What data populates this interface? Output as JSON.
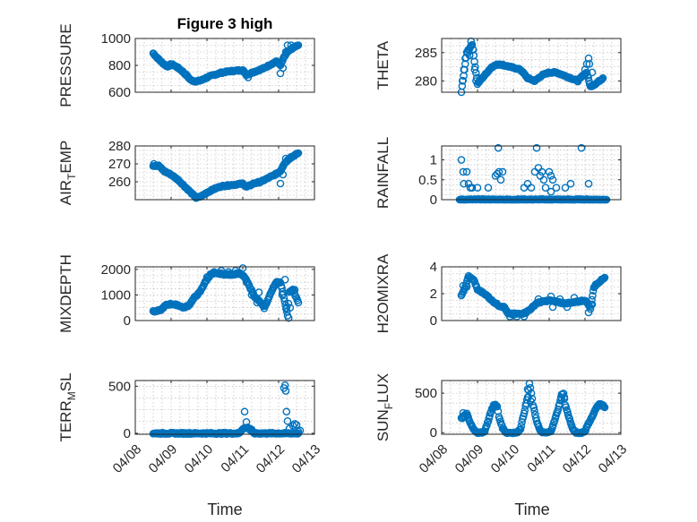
{
  "title": "Figure 3 high",
  "xlabel": "Time",
  "marker_color": "#0072bd",
  "chart_data": [
    {
      "type": "scatter",
      "title": "Figure 3 high",
      "ylabel": "PRESSURE",
      "ylabel_sub": "",
      "ylim": [
        600,
        1000
      ],
      "yticks": [
        600,
        800,
        1000
      ],
      "xlim": [
        0,
        5
      ],
      "grid": true,
      "xtick_labels": [
        "04/08",
        "04/09",
        "04/10",
        "04/11",
        "04/12",
        "04/13"
      ],
      "show_xticklabels": false,
      "anchors": [
        [
          0.5,
          890
        ],
        [
          0.6,
          860
        ],
        [
          0.75,
          820
        ],
        [
          0.9,
          790
        ],
        [
          1.0,
          810
        ],
        [
          1.15,
          790
        ],
        [
          1.3,
          760
        ],
        [
          1.45,
          720
        ],
        [
          1.55,
          690
        ],
        [
          1.7,
          680
        ],
        [
          1.85,
          690
        ],
        [
          2.0,
          710
        ],
        [
          2.2,
          730
        ],
        [
          2.4,
          745
        ],
        [
          2.6,
          755
        ],
        [
          2.8,
          760
        ],
        [
          3.0,
          765
        ],
        [
          3.1,
          730
        ],
        [
          3.25,
          745
        ],
        [
          3.4,
          760
        ],
        [
          3.6,
          780
        ],
        [
          3.8,
          810
        ],
        [
          3.95,
          830
        ],
        [
          4.05,
          800
        ],
        [
          4.15,
          860
        ],
        [
          4.25,
          900
        ],
        [
          4.4,
          930
        ],
        [
          4.55,
          950
        ]
      ],
      "extra": [
        [
          4.05,
          740
        ],
        [
          4.12,
          780
        ],
        [
          4.2,
          900
        ],
        [
          4.25,
          950
        ],
        [
          4.3,
          910
        ],
        [
          4.35,
          950
        ],
        [
          3.15,
          710
        ]
      ]
    },
    {
      "type": "scatter",
      "title": "",
      "ylabel": "THETA",
      "ylabel_sub": "",
      "ylim": [
        278,
        287.5
      ],
      "yticks": [
        280,
        285
      ],
      "xlim": [
        0,
        5
      ],
      "grid": true,
      "xtick_labels": [
        "04/08",
        "04/09",
        "04/10",
        "04/11",
        "04/12",
        "04/13"
      ],
      "show_xticklabels": false,
      "anchors": [
        [
          0.55,
          278
        ],
        [
          0.7,
          285
        ],
        [
          0.85,
          286.5
        ],
        [
          1.0,
          279.5
        ],
        [
          1.2,
          281
        ],
        [
          1.4,
          282.5
        ],
        [
          1.6,
          283
        ],
        [
          1.9,
          282.5
        ],
        [
          2.2,
          282
        ],
        [
          2.4,
          280.5
        ],
        [
          2.6,
          280
        ],
        [
          2.8,
          281
        ],
        [
          3.0,
          281.5
        ],
        [
          3.2,
          281.5
        ],
        [
          3.4,
          281
        ],
        [
          3.6,
          280.5
        ],
        [
          3.8,
          280
        ],
        [
          3.95,
          281
        ],
        [
          4.05,
          281.5
        ],
        [
          4.15,
          279
        ],
        [
          4.3,
          279.5
        ],
        [
          4.5,
          280.5
        ]
      ],
      "extra": [
        [
          0.58,
          280
        ],
        [
          0.62,
          282
        ],
        [
          0.66,
          284
        ],
        [
          0.74,
          285.5
        ],
        [
          0.78,
          284.5
        ],
        [
          0.82,
          287
        ],
        [
          0.88,
          285.5
        ],
        [
          0.92,
          282
        ],
        [
          0.96,
          280
        ],
        [
          1.05,
          280
        ],
        [
          1.1,
          280.5
        ],
        [
          4.0,
          282
        ],
        [
          4.05,
          283
        ],
        [
          4.1,
          284
        ],
        [
          4.12,
          283
        ],
        [
          4.2,
          281.5
        ]
      ]
    },
    {
      "type": "scatter",
      "title": "",
      "ylabel": "AIR",
      "ylabel_sub": "T",
      "ylabel_suffix": "EMP",
      "ylim": [
        250,
        280
      ],
      "yticks": [
        260,
        270,
        280
      ],
      "xlim": [
        0,
        5
      ],
      "grid": true,
      "xtick_labels": [
        "04/08",
        "04/09",
        "04/10",
        "04/11",
        "04/12",
        "04/13"
      ],
      "show_xticklabels": false,
      "anchors": [
        [
          0.5,
          269
        ],
        [
          0.65,
          269
        ],
        [
          0.8,
          266
        ],
        [
          1.0,
          264
        ],
        [
          1.2,
          261
        ],
        [
          1.4,
          257
        ],
        [
          1.55,
          254
        ],
        [
          1.7,
          251
        ],
        [
          1.85,
          252
        ],
        [
          2.0,
          254
        ],
        [
          2.2,
          256
        ],
        [
          2.4,
          257.5
        ],
        [
          2.6,
          258
        ],
        [
          2.8,
          258.5
        ],
        [
          3.0,
          259
        ],
        [
          3.1,
          257
        ],
        [
          3.3,
          259
        ],
        [
          3.5,
          260
        ],
        [
          3.7,
          262
        ],
        [
          3.9,
          264
        ],
        [
          4.05,
          266
        ],
        [
          4.15,
          270
        ],
        [
          4.3,
          273
        ],
        [
          4.55,
          276
        ]
      ],
      "extra": [
        [
          0.52,
          270
        ],
        [
          0.56,
          269
        ],
        [
          4.05,
          259
        ],
        [
          4.12,
          264
        ],
        [
          4.2,
          273
        ],
        [
          4.35,
          274
        ],
        [
          4.45,
          275
        ]
      ]
    },
    {
      "type": "scatter",
      "title": "",
      "ylabel": "RAINFALL",
      "ylabel_sub": "",
      "ylim": [
        0,
        1.35
      ],
      "yticks": [
        0,
        0.5,
        1
      ],
      "xlim": [
        0,
        5
      ],
      "grid": true,
      "xtick_labels": [
        "04/08",
        "04/09",
        "04/10",
        "04/11",
        "04/12",
        "04/13"
      ],
      "show_xticklabels": false,
      "anchors": [
        [
          0.5,
          0
        ],
        [
          4.6,
          0
        ]
      ],
      "extra": [
        [
          0.55,
          1.0
        ],
        [
          0.6,
          0.7
        ],
        [
          0.62,
          0.4
        ],
        [
          0.7,
          0.7
        ],
        [
          0.75,
          0.4
        ],
        [
          0.8,
          0.3
        ],
        [
          0.85,
          0.3
        ],
        [
          1.0,
          0.3
        ],
        [
          1.3,
          0.3
        ],
        [
          1.5,
          0.6
        ],
        [
          1.55,
          0.65
        ],
        [
          1.58,
          1.3
        ],
        [
          1.6,
          0.7
        ],
        [
          1.65,
          0.5
        ],
        [
          1.7,
          0.7
        ],
        [
          2.3,
          0.3
        ],
        [
          2.4,
          0.4
        ],
        [
          2.5,
          0.3
        ],
        [
          2.6,
          0.7
        ],
        [
          2.65,
          1.3
        ],
        [
          2.7,
          0.8
        ],
        [
          2.75,
          0.6
        ],
        [
          2.8,
          0.7
        ],
        [
          2.85,
          0.5
        ],
        [
          2.9,
          0.3
        ],
        [
          3.0,
          0.7
        ],
        [
          3.05,
          0.6
        ],
        [
          3.1,
          0.5
        ],
        [
          3.2,
          0.3
        ],
        [
          3.45,
          0.3
        ],
        [
          3.6,
          0.4
        ],
        [
          3.9,
          1.3
        ],
        [
          4.1,
          0.4
        ],
        [
          3.05,
          0.2
        ]
      ]
    },
    {
      "type": "scatter",
      "title": "",
      "ylabel": "MIXDEPTH",
      "ylabel_sub": "",
      "ylim": [
        0,
        2100
      ],
      "yticks": [
        0,
        1000,
        2000
      ],
      "xlim": [
        0,
        5
      ],
      "grid": true,
      "xtick_labels": [
        "04/08",
        "04/09",
        "04/10",
        "04/11",
        "04/12",
        "04/13"
      ],
      "show_xticklabels": false,
      "anchors": [
        [
          0.5,
          350
        ],
        [
          0.7,
          400
        ],
        [
          0.85,
          600
        ],
        [
          1.0,
          650
        ],
        [
          1.2,
          600
        ],
        [
          1.35,
          500
        ],
        [
          1.5,
          600
        ],
        [
          1.65,
          900
        ],
        [
          1.8,
          1100
        ],
        [
          1.95,
          1500
        ],
        [
          2.1,
          1800
        ],
        [
          2.3,
          1850
        ],
        [
          2.5,
          1800
        ],
        [
          2.7,
          1800
        ],
        [
          2.9,
          1850
        ],
        [
          3.05,
          1700
        ],
        [
          3.2,
          1300
        ],
        [
          3.35,
          900
        ],
        [
          3.5,
          700
        ],
        [
          3.6,
          500
        ],
        [
          3.7,
          800
        ],
        [
          3.85,
          1300
        ],
        [
          3.95,
          1500
        ],
        [
          4.05,
          1500
        ],
        [
          4.15,
          900
        ],
        [
          4.25,
          200
        ],
        [
          4.3,
          1100
        ],
        [
          4.4,
          1200
        ],
        [
          4.55,
          700
        ]
      ],
      "extra": [
        [
          2.0,
          1700
        ],
        [
          2.2,
          1900
        ],
        [
          2.4,
          1950
        ],
        [
          2.6,
          1900
        ],
        [
          2.8,
          1950
        ],
        [
          3.0,
          2050
        ],
        [
          3.1,
          1500
        ],
        [
          3.25,
          1000
        ],
        [
          3.4,
          700
        ],
        [
          3.45,
          1100
        ],
        [
          3.55,
          600
        ],
        [
          4.1,
          1000
        ],
        [
          4.18,
          1600
        ],
        [
          4.22,
          500
        ],
        [
          4.28,
          100
        ],
        [
          4.32,
          500
        ],
        [
          4.45,
          1200
        ]
      ]
    },
    {
      "type": "scatter",
      "title": "",
      "ylabel": "H2OMIXRA",
      "ylabel_sub": "",
      "ylim": [
        0,
        4
      ],
      "yticks": [
        0,
        2,
        4
      ],
      "xlim": [
        0,
        5
      ],
      "grid": true,
      "xtick_labels": [
        "04/08",
        "04/09",
        "04/10",
        "04/11",
        "04/12",
        "04/13"
      ],
      "show_xticklabels": false,
      "anchors": [
        [
          0.55,
          1.9
        ],
        [
          0.65,
          2.4
        ],
        [
          0.75,
          3.3
        ],
        [
          0.9,
          3.0
        ],
        [
          1.0,
          2.3
        ],
        [
          1.2,
          2.0
        ],
        [
          1.4,
          1.5
        ],
        [
          1.6,
          1.1
        ],
        [
          1.75,
          1.0
        ],
        [
          1.85,
          0.5
        ],
        [
          2.0,
          0.5
        ],
        [
          2.2,
          0.5
        ],
        [
          2.35,
          0.6
        ],
        [
          2.5,
          0.9
        ],
        [
          2.65,
          1.3
        ],
        [
          2.8,
          1.4
        ],
        [
          3.0,
          1.5
        ],
        [
          3.2,
          1.4
        ],
        [
          3.4,
          1.3
        ],
        [
          3.6,
          1.3
        ],
        [
          3.8,
          1.4
        ],
        [
          3.95,
          1.5
        ],
        [
          4.05,
          1.4
        ],
        [
          4.15,
          0.9
        ],
        [
          4.25,
          2.5
        ],
        [
          4.4,
          2.9
        ],
        [
          4.55,
          3.2
        ]
      ],
      "extra": [
        [
          0.6,
          2.6
        ],
        [
          0.7,
          2.5
        ],
        [
          0.8,
          3.2
        ],
        [
          0.85,
          3.1
        ],
        [
          1.1,
          2.2
        ],
        [
          1.3,
          1.8
        ],
        [
          1.9,
          0.3
        ],
        [
          2.1,
          0.3
        ],
        [
          2.3,
          0.3
        ],
        [
          2.7,
          1.6
        ],
        [
          3.05,
          1.8
        ],
        [
          3.1,
          1.0
        ],
        [
          3.3,
          1.6
        ],
        [
          3.5,
          1.0
        ],
        [
          3.7,
          1.7
        ],
        [
          4.1,
          0.6
        ],
        [
          4.2,
          1.2
        ],
        [
          4.3,
          2.7
        ],
        [
          4.45,
          3.0
        ]
      ]
    },
    {
      "type": "scatter",
      "title": "",
      "ylabel": "TERR",
      "ylabel_sub": "M",
      "ylabel_suffix": "SL",
      "ylim": [
        -10,
        560
      ],
      "yticks": [
        0,
        500
      ],
      "xlim": [
        0,
        5
      ],
      "grid": true,
      "xtick_labels": [
        "04/08",
        "04/09",
        "04/10",
        "04/11",
        "04/12",
        "04/13"
      ],
      "show_xticklabels": true,
      "anchors": [
        [
          0.5,
          0
        ],
        [
          2.9,
          0
        ],
        [
          3.0,
          50
        ],
        [
          3.15,
          60
        ],
        [
          3.3,
          0
        ],
        [
          4.0,
          0
        ],
        [
          4.2,
          0
        ],
        [
          4.4,
          0
        ],
        [
          4.55,
          0
        ]
      ],
      "extra": [
        [
          3.05,
          230
        ],
        [
          3.1,
          120
        ],
        [
          3.2,
          50
        ],
        [
          3.25,
          40
        ],
        [
          4.15,
          480
        ],
        [
          4.18,
          510
        ],
        [
          4.2,
          450
        ],
        [
          4.22,
          230
        ],
        [
          4.25,
          130
        ],
        [
          4.3,
          50
        ],
        [
          4.4,
          80
        ],
        [
          4.45,
          100
        ],
        [
          4.5,
          90
        ],
        [
          4.55,
          20
        ],
        [
          4.6,
          30
        ]
      ]
    },
    {
      "type": "scatter",
      "title": "",
      "ylabel": "SUN",
      "ylabel_sub": "F",
      "ylabel_suffix": "LUX",
      "ylim": [
        -20,
        660
      ],
      "yticks": [
        0,
        500
      ],
      "xlim": [
        0,
        5
      ],
      "grid": true,
      "xtick_labels": [
        "04/08",
        "04/09",
        "04/10",
        "04/11",
        "04/12",
        "04/13"
      ],
      "show_xticklabels": true,
      "anchors": [
        [
          0.55,
          180
        ],
        [
          0.7,
          240
        ],
        [
          0.8,
          120
        ],
        [
          0.9,
          40
        ],
        [
          1.0,
          0
        ],
        [
          1.1,
          0
        ],
        [
          1.2,
          20
        ],
        [
          1.3,
          150
        ],
        [
          1.4,
          300
        ],
        [
          1.5,
          350
        ],
        [
          1.55,
          330
        ],
        [
          1.6,
          200
        ],
        [
          1.7,
          60
        ],
        [
          1.8,
          0
        ],
        [
          1.9,
          0
        ],
        [
          2.1,
          0
        ],
        [
          2.2,
          50
        ],
        [
          2.3,
          250
        ],
        [
          2.4,
          450
        ],
        [
          2.45,
          620
        ],
        [
          2.5,
          500
        ],
        [
          2.55,
          350
        ],
        [
          2.65,
          150
        ],
        [
          2.75,
          20
        ],
        [
          2.85,
          0
        ],
        [
          2.95,
          0
        ],
        [
          3.05,
          20
        ],
        [
          3.15,
          150
        ],
        [
          3.25,
          300
        ],
        [
          3.35,
          480
        ],
        [
          3.4,
          500
        ],
        [
          3.45,
          350
        ],
        [
          3.55,
          200
        ],
        [
          3.65,
          50
        ],
        [
          3.75,
          0
        ],
        [
          3.9,
          0
        ],
        [
          4.0,
          20
        ],
        [
          4.1,
          120
        ],
        [
          4.2,
          200
        ],
        [
          4.3,
          300
        ],
        [
          4.4,
          370
        ],
        [
          4.55,
          320
        ]
      ],
      "extra": [
        [
          0.6,
          250
        ],
        [
          0.65,
          200
        ],
        [
          1.45,
          350
        ],
        [
          1.5,
          340
        ],
        [
          2.4,
          550
        ],
        [
          2.42,
          450
        ],
        [
          2.48,
          400
        ],
        [
          3.35,
          420
        ],
        [
          3.42,
          450
        ],
        [
          4.35,
          330
        ],
        [
          4.45,
          360
        ],
        [
          4.5,
          350
        ]
      ]
    }
  ]
}
